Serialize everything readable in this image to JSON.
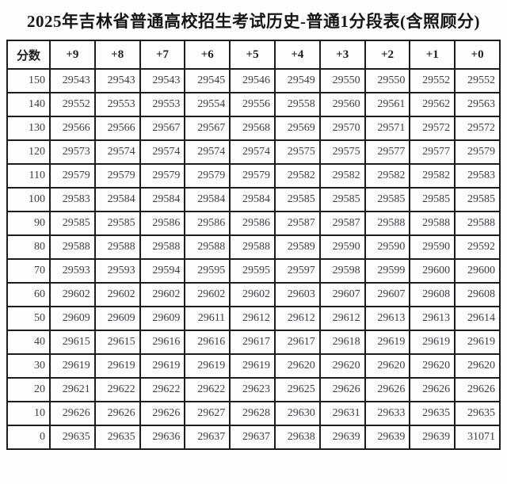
{
  "page": {
    "title": "2025年吉林省普通高校招生考试历史-普通1分段表(含照顾分)"
  },
  "colors": {
    "border": "#1c1c1c",
    "cell_text": "#3d3d47",
    "background": "#fdfdfd"
  },
  "table": {
    "columns": [
      "分数",
      "+9",
      "+8",
      "+7",
      "+6",
      "+5",
      "+4",
      "+3",
      "+2",
      "+1",
      "+0"
    ],
    "rows": [
      {
        "score": "150",
        "values": [
          "29543",
          "29543",
          "29543",
          "29545",
          "29546",
          "29549",
          "29550",
          "29550",
          "29552",
          "29552"
        ]
      },
      {
        "score": "140",
        "values": [
          "29552",
          "29553",
          "29553",
          "29554",
          "29556",
          "29558",
          "29560",
          "29561",
          "29562",
          "29563"
        ]
      },
      {
        "score": "130",
        "values": [
          "29566",
          "29566",
          "29567",
          "29567",
          "29568",
          "29569",
          "29570",
          "29571",
          "29572",
          "29572"
        ]
      },
      {
        "score": "120",
        "values": [
          "29573",
          "29574",
          "29574",
          "29574",
          "29574",
          "29575",
          "29575",
          "29577",
          "29577",
          "29579"
        ]
      },
      {
        "score": "110",
        "values": [
          "29579",
          "29579",
          "29579",
          "29579",
          "29579",
          "29582",
          "29582",
          "29582",
          "29582",
          "29583"
        ]
      },
      {
        "score": "100",
        "values": [
          "29583",
          "29584",
          "29584",
          "29584",
          "29584",
          "29585",
          "29585",
          "29585",
          "29585",
          "29585"
        ]
      },
      {
        "score": "90",
        "values": [
          "29585",
          "29585",
          "29586",
          "29586",
          "29586",
          "29587",
          "29587",
          "29588",
          "29588",
          "29588"
        ]
      },
      {
        "score": "80",
        "values": [
          "29588",
          "29588",
          "29588",
          "29588",
          "29588",
          "29589",
          "29590",
          "29590",
          "29590",
          "29592"
        ]
      },
      {
        "score": "70",
        "values": [
          "29593",
          "29593",
          "29594",
          "29595",
          "29595",
          "29597",
          "29598",
          "29599",
          "29600",
          "29600"
        ]
      },
      {
        "score": "60",
        "values": [
          "29602",
          "29602",
          "29602",
          "29602",
          "29602",
          "29603",
          "29607",
          "29607",
          "29608",
          "29608"
        ]
      },
      {
        "score": "50",
        "values": [
          "29609",
          "29609",
          "29609",
          "29611",
          "29612",
          "29612",
          "29612",
          "29613",
          "29613",
          "29614"
        ]
      },
      {
        "score": "40",
        "values": [
          "29615",
          "29615",
          "29616",
          "29616",
          "29617",
          "29617",
          "29618",
          "29619",
          "29619",
          "29619"
        ]
      },
      {
        "score": "30",
        "values": [
          "29619",
          "29619",
          "29619",
          "29619",
          "29619",
          "29620",
          "29620",
          "29620",
          "29620",
          "29620"
        ]
      },
      {
        "score": "20",
        "values": [
          "29621",
          "29622",
          "29622",
          "29622",
          "29623",
          "29625",
          "29626",
          "29626",
          "29626",
          "29626"
        ]
      },
      {
        "score": "10",
        "values": [
          "29626",
          "29626",
          "29626",
          "29627",
          "29628",
          "29630",
          "29631",
          "29633",
          "29635",
          "29635"
        ]
      },
      {
        "score": "0",
        "values": [
          "29635",
          "29635",
          "29636",
          "29637",
          "29637",
          "29638",
          "29639",
          "29639",
          "29639",
          "31071"
        ]
      }
    ]
  }
}
